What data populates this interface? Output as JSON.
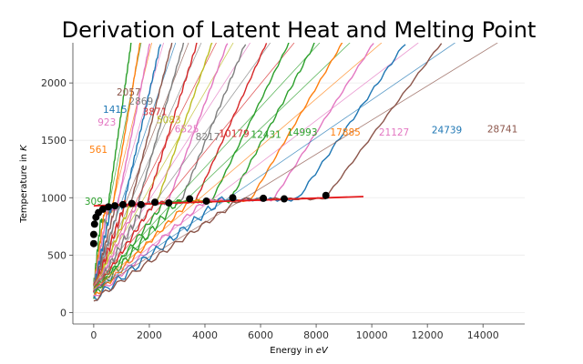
{
  "chart_data": {
    "type": "line",
    "title": "Derivation of Latent Heat and Melting Point",
    "xlabel": "Energy in eV",
    "xlabel_parts": [
      "Energy in ",
      "eV"
    ],
    "ylabel": "Temperature in K",
    "ylabel_parts": [
      "Temperature in ",
      "K"
    ],
    "xlim": [
      -750,
      15500
    ],
    "ylim": [
      -100,
      2350
    ],
    "xticks": [
      0,
      2000,
      4000,
      6000,
      8000,
      10000,
      12000,
      14000
    ],
    "yticks": [
      0,
      500,
      1000,
      1500,
      2000
    ],
    "grid": true,
    "colors": [
      "#1f77b4",
      "#ff7f0e",
      "#2ca02c",
      "#d62728",
      "#9467bd",
      "#8c564b",
      "#e377c2",
      "#7f7f7f",
      "#bcbd22",
      "#17becf"
    ],
    "size_labels": [
      {
        "text": "309",
        "x": 0,
        "y": 940,
        "color": "#2ca02c"
      },
      {
        "text": "561",
        "x": 170,
        "y": 1390,
        "color": "#ff7f0e"
      },
      {
        "text": "923",
        "x": 470,
        "y": 1630,
        "color": "#e377c2"
      },
      {
        "text": "1415",
        "x": 770,
        "y": 1740,
        "color": "#1f77b4"
      },
      {
        "text": "2057",
        "x": 1260,
        "y": 1890,
        "color": "#8c564b"
      },
      {
        "text": "2869",
        "x": 1700,
        "y": 1810,
        "color": "#7f7f7f"
      },
      {
        "text": "3871",
        "x": 2200,
        "y": 1720,
        "color": "#d62728"
      },
      {
        "text": "5083",
        "x": 2700,
        "y": 1650,
        "color": "#bcbd22"
      },
      {
        "text": "6525",
        "x": 3350,
        "y": 1570,
        "color": "#e377c2"
      },
      {
        "text": "8217",
        "x": 4100,
        "y": 1500,
        "color": "#7f7f7f"
      },
      {
        "text": "10179",
        "x": 5050,
        "y": 1530,
        "color": "#d62728"
      },
      {
        "text": "12431",
        "x": 6200,
        "y": 1520,
        "color": "#2ca02c"
      },
      {
        "text": "14993",
        "x": 7500,
        "y": 1540,
        "color": "#2ca02c"
      },
      {
        "text": "17885",
        "x": 9050,
        "y": 1540,
        "color": "#ff7f0e"
      },
      {
        "text": "21127",
        "x": 10800,
        "y": 1540,
        "color": "#e377c2"
      },
      {
        "text": "24739",
        "x": 12700,
        "y": 1560,
        "color": "#1f77b4"
      },
      {
        "text": "28741",
        "x": 14700,
        "y": 1570,
        "color": "#8c564b"
      }
    ],
    "series": [
      {
        "e0": 130,
        "t0": 570,
        "slope": 1.9,
        "tm": 800,
        "eh": 190,
        "color": "#2ca02c"
      },
      {
        "e0": 180,
        "t0": 550,
        "slope": 1.6,
        "tm": 870,
        "eh": 260,
        "color": "#ff7f0e"
      },
      {
        "e0": 230,
        "t0": 540,
        "slope": 1.35,
        "tm": 900,
        "eh": 330,
        "color": "#e377c2"
      },
      {
        "e0": 290,
        "t0": 520,
        "slope": 1.18,
        "tm": 920,
        "eh": 430,
        "color": "#1f77b4"
      },
      {
        "e0": 370,
        "t0": 500,
        "slope": 1.05,
        "tm": 930,
        "eh": 530,
        "color": "#8c564b"
      },
      {
        "e0": 460,
        "t0": 490,
        "slope": 0.95,
        "tm": 930,
        "eh": 650,
        "color": "#7f7f7f"
      },
      {
        "e0": 570,
        "t0": 470,
        "slope": 0.86,
        "tm": 940,
        "eh": 780,
        "color": "#d62728"
      },
      {
        "e0": 700,
        "t0": 450,
        "slope": 0.78,
        "tm": 950,
        "eh": 920,
        "color": "#bcbd22"
      },
      {
        "e0": 850,
        "t0": 430,
        "slope": 0.72,
        "tm": 950,
        "eh": 1080,
        "color": "#e377c2"
      },
      {
        "e0": 1030,
        "t0": 410,
        "slope": 0.66,
        "tm": 955,
        "eh": 1260,
        "color": "#7f7f7f"
      },
      {
        "e0": 1240,
        "t0": 390,
        "slope": 0.6,
        "tm": 960,
        "eh": 1450,
        "color": "#d62728"
      },
      {
        "e0": 1480,
        "t0": 370,
        "slope": 0.55,
        "tm": 965,
        "eh": 1660,
        "color": "#2ca02c"
      },
      {
        "e0": 1760,
        "t0": 350,
        "slope": 0.5,
        "tm": 970,
        "eh": 1890,
        "color": "#2ca02c"
      },
      {
        "e0": 2080,
        "t0": 330,
        "slope": 0.46,
        "tm": 975,
        "eh": 2140,
        "color": "#ff7f0e"
      },
      {
        "e0": 2440,
        "t0": 310,
        "slope": 0.42,
        "tm": 980,
        "eh": 2410,
        "color": "#e377c2"
      },
      {
        "e0": 2840,
        "t0": 290,
        "slope": 0.39,
        "tm": 985,
        "eh": 2700,
        "color": "#1f77b4"
      },
      {
        "e0": 3300,
        "t0": 270,
        "slope": 0.36,
        "tm": 990,
        "eh": 3010,
        "color": "#8c564b"
      }
    ],
    "melting_points": [
      {
        "x": 0,
        "y": 600
      },
      {
        "x": 0,
        "y": 680
      },
      {
        "x": 30,
        "y": 770
      },
      {
        "x": 80,
        "y": 830
      },
      {
        "x": 170,
        "y": 870
      },
      {
        "x": 330,
        "y": 900
      },
      {
        "x": 530,
        "y": 920
      },
      {
        "x": 760,
        "y": 930
      },
      {
        "x": 1050,
        "y": 940
      },
      {
        "x": 1370,
        "y": 950
      },
      {
        "x": 1700,
        "y": 940
      },
      {
        "x": 2200,
        "y": 960
      },
      {
        "x": 2700,
        "y": 955
      },
      {
        "x": 3450,
        "y": 990
      },
      {
        "x": 4050,
        "y": 970
      },
      {
        "x": 5000,
        "y": 1000
      },
      {
        "x": 6100,
        "y": 995
      },
      {
        "x": 6850,
        "y": 990
      },
      {
        "x": 8350,
        "y": 1020
      }
    ],
    "fit_line": {
      "x": [
        0,
        9700
      ],
      "y": [
        930,
        1010
      ],
      "color": "#e41a1c"
    }
  }
}
